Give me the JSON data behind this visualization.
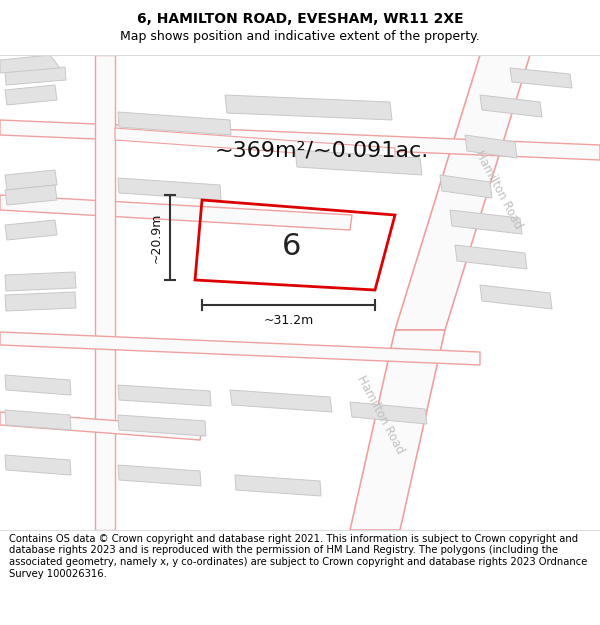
{
  "title": "6, HAMILTON ROAD, EVESHAM, WR11 2XE",
  "subtitle": "Map shows position and indicative extent of the property.",
  "footer": "Contains OS data © Crown copyright and database right 2021. This information is subject to Crown copyright and database rights 2023 and is reproduced with the permission of HM Land Registry. The polygons (including the associated geometry, namely x, y co-ordinates) are subject to Crown copyright and database rights 2023 Ordnance Survey 100026316.",
  "area_label": "~369m²/~0.091ac.",
  "number_label": "6",
  "width_label": "~31.2m",
  "height_label": "~20.9m",
  "map_bg": "#ffffff",
  "road_stroke": "#f0a0a0",
  "building_fill": "#e0e0e0",
  "building_stroke": "#cccccc",
  "plot_stroke": "#dd0000",
  "dim_color": "#333333",
  "road_label_color": "#c0c0c0",
  "title_fontsize": 10,
  "subtitle_fontsize": 9,
  "footer_fontsize": 7.2,
  "area_fontsize": 16,
  "number_fontsize": 22
}
